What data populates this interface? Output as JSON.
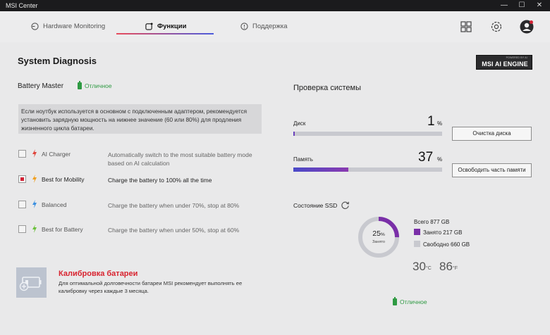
{
  "window": {
    "title": "MSI Center",
    "minimize": "—",
    "maximize": "☐",
    "close": "✕"
  },
  "tabs": [
    {
      "label": "Hardware Monitoring",
      "active": false
    },
    {
      "label": "Функции",
      "active": true
    },
    {
      "label": "Поддержка",
      "active": false
    }
  ],
  "header_icons": [
    "apps-grid-icon",
    "settings-gear-icon",
    "user-avatar-icon"
  ],
  "page_title": "System Diagnosis",
  "logo": {
    "small_text": "POWERED BY AI",
    "big_text": "MSI AI ENGINE"
  },
  "battery_master": {
    "title": "Battery Master",
    "status": "Отличное",
    "info": "Если ноутбук используется в основном с подключенным адаптером, рекомендуется установить зарядную мощность на нижнее значение (60 или 80%) для продления жизненного цикла батареи.",
    "options": [
      {
        "label": "AI Charger",
        "desc": "Automatically switch to the most suitable battery mode based on AI calculation",
        "checked": false,
        "color": "#e0443a"
      },
      {
        "label": "Best for Mobility",
        "desc": "Charge the battery to 100% all the time",
        "checked": true,
        "color": "#f0a020"
      },
      {
        "label": "Balanced",
        "desc": "Charge the battery when under 70%, stop at 80%",
        "checked": false,
        "color": "#3a8fe0"
      },
      {
        "label": "Best for Battery",
        "desc": "Charge the battery when under 50%, stop at 60%",
        "checked": false,
        "color": "#6ac03a"
      }
    ]
  },
  "calibration": {
    "title": "Калибровка батареи",
    "text": "Для оптимальной долговечности батареи MSI рекомендует выполнять ее калибровку через каждые 3 месяца."
  },
  "system_check": {
    "title": "Проверка системы",
    "disk": {
      "label": "Диск",
      "value": "1",
      "unit": "%",
      "percent": 1,
      "button": "Очистка диска"
    },
    "memory": {
      "label": "Память",
      "value": "37",
      "unit": "%",
      "percent": 37,
      "button": "Освободить часть памяти"
    }
  },
  "ssd": {
    "title": "Состояние SSD",
    "used_percent": "25",
    "percent_sign": "%",
    "used_caption": "Занято",
    "total": "Всего 877 GB",
    "used": "Занято 217 GB",
    "free": "Свободно 660 GB",
    "used_color": "#7a2fa8",
    "free_color": "#c8c9cf",
    "temp_c": "30",
    "temp_c_unit": "°C",
    "temp_f": "86",
    "temp_f_unit": "°F",
    "status": "Отличное"
  }
}
